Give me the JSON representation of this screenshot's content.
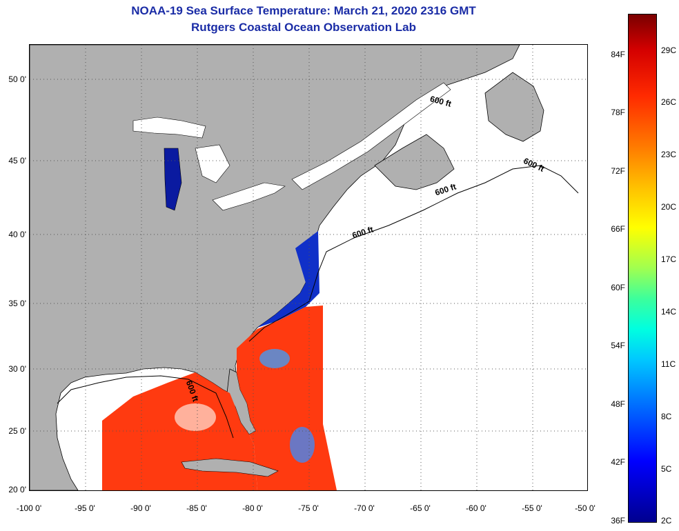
{
  "header": {
    "title": "NOAA-19 Sea Surface Temperature:  March 21, 2020 2316 GMT",
    "subtitle": "Rutgers Coastal Ocean Observation Lab"
  },
  "map": {
    "latitude_labels": [
      "50 0'",
      "45 0'",
      "40 0'",
      "35 0'",
      "30 0'",
      "25 0'",
      "20 0'"
    ],
    "longitude_labels": [
      "-100 0'",
      "-95 0'",
      "-90 0'",
      "-85 0'",
      "-80 0'",
      "-75 0'",
      "-70 0'",
      "-65 0'",
      "-60 0'",
      "-55 0'",
      "-50 0'"
    ],
    "contour_labels": [
      "600 ft",
      "600 ft",
      "600 ft",
      "600 ft",
      "600 ft"
    ],
    "colors": {
      "land": "#b0b0b0",
      "no_data": "#ffffff",
      "warm_water": "#ff3a10",
      "cold_water": "#1030c8"
    }
  },
  "colorbar": {
    "fahrenheit_labels": [
      "84F",
      "78F",
      "72F",
      "66F",
      "60F",
      "54F",
      "48F",
      "42F",
      "36F"
    ],
    "celsius_labels": [
      "29C",
      "26C",
      "23C",
      "20C",
      "17C",
      "14C",
      "11C",
      "8C",
      "5C",
      "2C"
    ]
  }
}
